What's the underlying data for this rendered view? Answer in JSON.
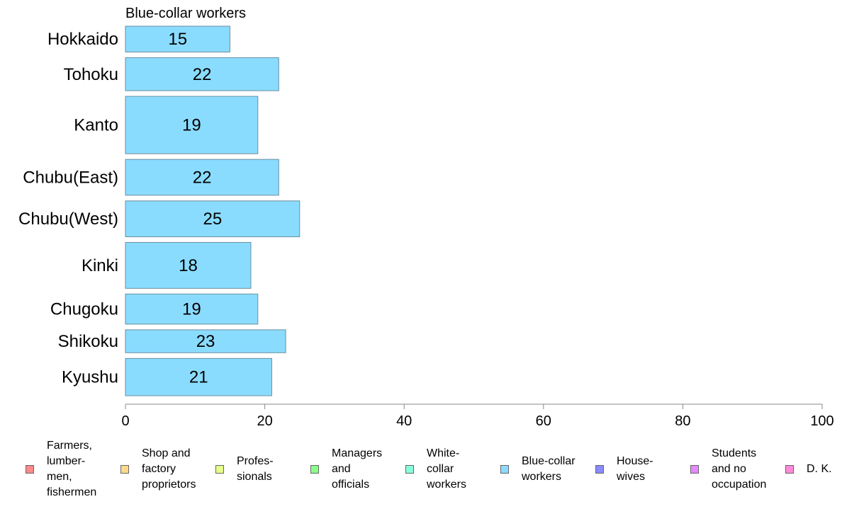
{
  "chart_data": {
    "type": "bar",
    "orientation": "horizontal",
    "title": "Blue-collar workers",
    "categories": [
      "Hokkaido",
      "Tohoku",
      "Kanto",
      "Chubu(East)",
      "Chubu(West)",
      "Kinki",
      "Chugoku",
      "Shikoku",
      "Kyushu"
    ],
    "series": [
      {
        "values": [
          15,
          22,
          19,
          22,
          25,
          18,
          19,
          23,
          21
        ],
        "color": "#8adcff"
      }
    ],
    "bar_weights": [
      0.9,
      1.15,
      2.0,
      1.25,
      1.25,
      1.6,
      1.05,
      0.8,
      1.3
    ],
    "xlim": [
      0,
      100
    ],
    "x_ticks": [
      "0",
      "20",
      "40",
      "60",
      "80",
      "100"
    ],
    "grid": false
  },
  "legend": [
    {
      "label": "Farmers,\nlumber-\nmen,\nfishermen",
      "color": "#ff8a8a"
    },
    {
      "label": "Shop and\nfactory\nproprietors",
      "color": "#ffd98a"
    },
    {
      "label": "Profes-\nsionals",
      "color": "#e5ff8a"
    },
    {
      "label": "Managers\nand\nofficials",
      "color": "#8aff8a"
    },
    {
      "label": "White-\ncollar\nworkers",
      "color": "#8affdc"
    },
    {
      "label": "Blue-collar\nworkers",
      "color": "#8adcff"
    },
    {
      "label": "House-\nwives",
      "color": "#8a8aff"
    },
    {
      "label": "Students\nand no\noccupation",
      "color": "#e58aff"
    },
    {
      "label": "D. K.",
      "color": "#ff8ad9"
    }
  ]
}
